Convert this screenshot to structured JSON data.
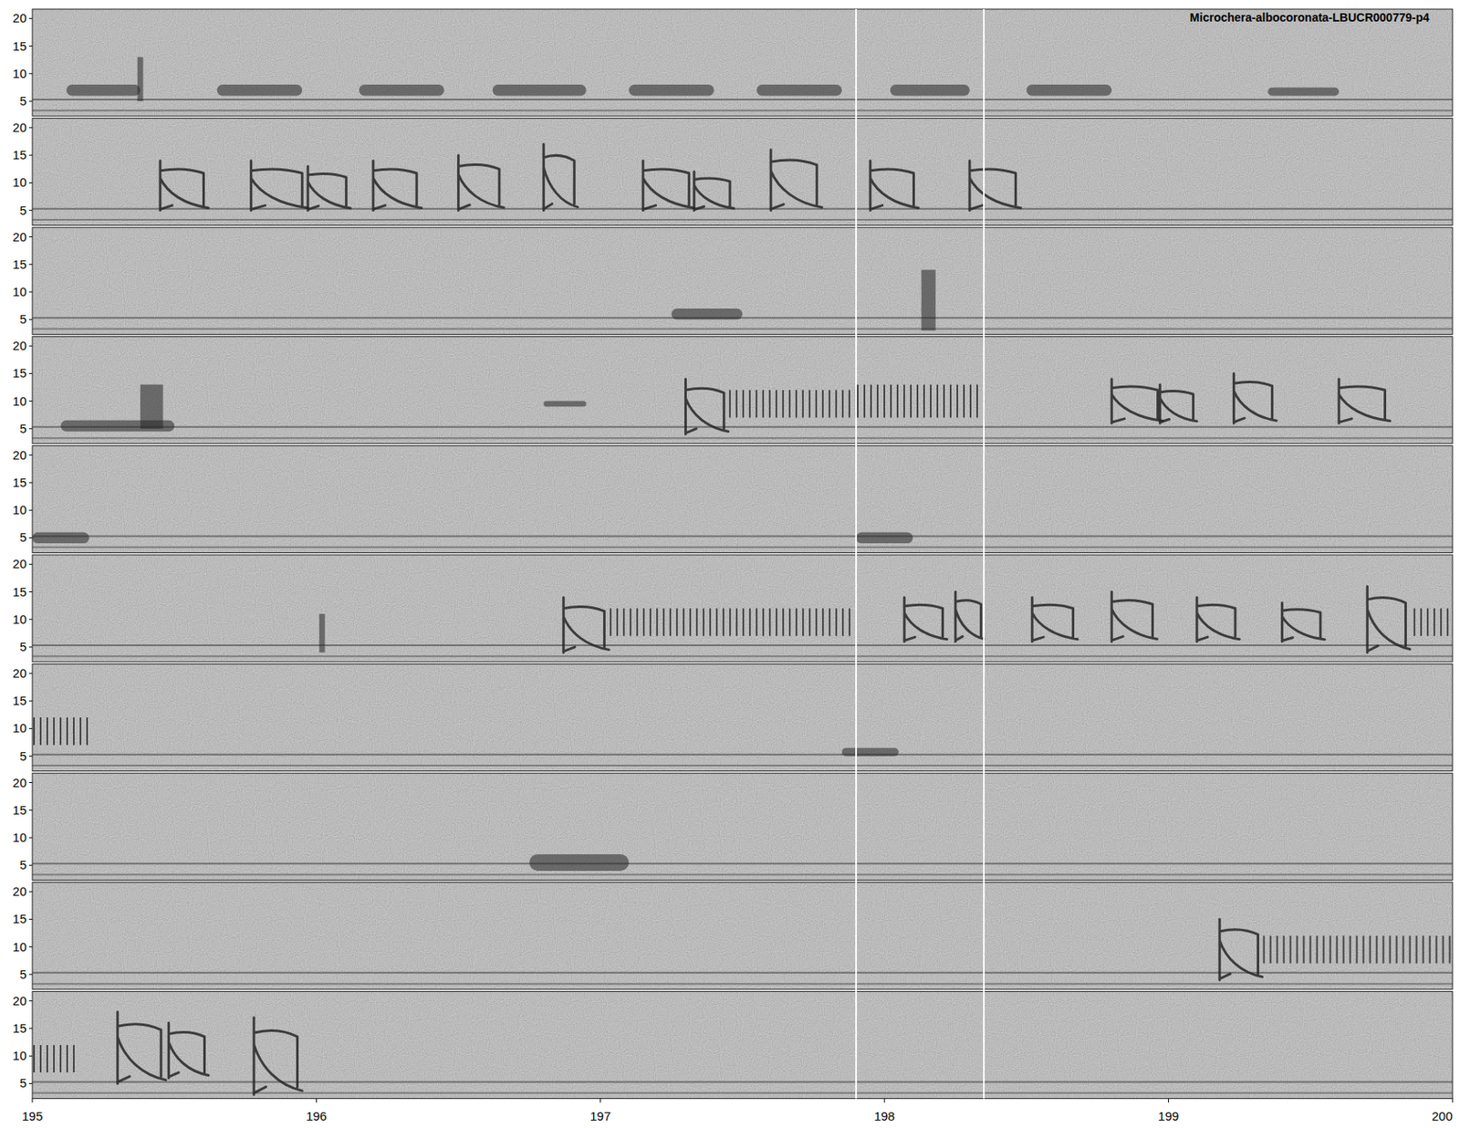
{
  "chart_data": {
    "type": "spectrogram",
    "title": "Microchera-albocoronata-LBUCR000779-p4",
    "xlim": [
      195,
      200
    ],
    "xticks": [
      195,
      196,
      197,
      198,
      199,
      200
    ],
    "ylim": [
      2.3,
      21.7
    ],
    "yticks": [
      5,
      10,
      15,
      20
    ],
    "markers": [
      197.9,
      198.35
    ],
    "panels": [
      {
        "events": [
          {
            "type": "band",
            "start": 195.12,
            "end": 195.38,
            "low": 6,
            "high": 8
          },
          {
            "type": "click",
            "start": 195.37,
            "end": 195.39,
            "low": 5,
            "high": 13
          },
          {
            "type": "band",
            "start": 195.65,
            "end": 195.95,
            "low": 6,
            "high": 8
          },
          {
            "type": "band",
            "start": 196.15,
            "end": 196.45,
            "low": 6,
            "high": 8
          },
          {
            "type": "band",
            "start": 196.62,
            "end": 196.95,
            "low": 6,
            "high": 8
          },
          {
            "type": "band",
            "start": 197.1,
            "end": 197.4,
            "low": 6,
            "high": 8
          },
          {
            "type": "band",
            "start": 197.55,
            "end": 197.85,
            "low": 6,
            "high": 8
          },
          {
            "type": "band",
            "start": 198.02,
            "end": 198.3,
            "low": 6,
            "high": 8
          },
          {
            "type": "band",
            "start": 198.5,
            "end": 198.8,
            "low": 6,
            "high": 8
          },
          {
            "type": "band",
            "start": 199.35,
            "end": 199.6,
            "low": 6,
            "high": 7.5
          }
        ]
      },
      {
        "events": [
          {
            "type": "sweep",
            "start": 195.45,
            "end": 195.62,
            "low": 5,
            "high": 14
          },
          {
            "type": "sweep",
            "start": 195.77,
            "end": 195.97,
            "low": 5,
            "high": 14
          },
          {
            "type": "sweep",
            "start": 195.97,
            "end": 196.12,
            "low": 5,
            "high": 13
          },
          {
            "type": "sweep",
            "start": 196.2,
            "end": 196.37,
            "low": 5,
            "high": 14
          },
          {
            "type": "sweep",
            "start": 196.5,
            "end": 196.66,
            "low": 5,
            "high": 15
          },
          {
            "type": "sweep",
            "start": 196.8,
            "end": 196.92,
            "low": 5,
            "high": 17
          },
          {
            "type": "sweep",
            "start": 197.15,
            "end": 197.33,
            "low": 5,
            "high": 14
          },
          {
            "type": "sweep",
            "start": 197.33,
            "end": 197.47,
            "low": 5,
            "high": 12
          },
          {
            "type": "sweep",
            "start": 197.6,
            "end": 197.78,
            "low": 5,
            "high": 16
          },
          {
            "type": "sweep",
            "start": 197.95,
            "end": 198.12,
            "low": 5,
            "high": 14
          },
          {
            "type": "sweep",
            "start": 198.3,
            "end": 198.48,
            "low": 5,
            "high": 14
          }
        ]
      },
      {
        "events": [
          {
            "type": "band",
            "start": 197.25,
            "end": 197.5,
            "low": 5,
            "high": 7
          },
          {
            "type": "click",
            "start": 198.13,
            "end": 198.18,
            "low": 3,
            "high": 14
          }
        ]
      },
      {
        "events": [
          {
            "type": "band",
            "start": 195.1,
            "end": 195.5,
            "low": 4.5,
            "high": 6.5
          },
          {
            "type": "click",
            "start": 195.38,
            "end": 195.46,
            "low": 5,
            "high": 13
          },
          {
            "type": "band",
            "start": 196.8,
            "end": 196.95,
            "low": 9,
            "high": 10
          },
          {
            "type": "sweep",
            "start": 197.3,
            "end": 197.45,
            "low": 4,
            "high": 14
          },
          {
            "type": "buzz",
            "start": 197.45,
            "end": 197.9,
            "low": 7,
            "high": 12
          },
          {
            "type": "buzz",
            "start": 197.9,
            "end": 198.35,
            "low": 7,
            "high": 13
          },
          {
            "type": "sweep",
            "start": 198.8,
            "end": 198.98,
            "low": 6,
            "high": 14
          },
          {
            "type": "sweep",
            "start": 198.97,
            "end": 199.1,
            "low": 6,
            "high": 13
          },
          {
            "type": "sweep",
            "start": 199.23,
            "end": 199.38,
            "low": 6,
            "high": 15
          },
          {
            "type": "sweep",
            "start": 199.6,
            "end": 199.78,
            "low": 6,
            "high": 14
          }
        ]
      },
      {
        "events": [
          {
            "type": "band",
            "start": 195.0,
            "end": 195.2,
            "low": 4,
            "high": 6
          },
          {
            "type": "band",
            "start": 197.9,
            "end": 198.1,
            "low": 4,
            "high": 6
          }
        ]
      },
      {
        "events": [
          {
            "type": "click",
            "start": 196.01,
            "end": 196.03,
            "low": 4,
            "high": 11
          },
          {
            "type": "sweep",
            "start": 196.87,
            "end": 197.03,
            "low": 4,
            "high": 14
          },
          {
            "type": "buzz",
            "start": 197.03,
            "end": 197.9,
            "low": 7,
            "high": 12
          },
          {
            "type": "sweep",
            "start": 198.07,
            "end": 198.22,
            "low": 6,
            "high": 14
          },
          {
            "type": "sweep",
            "start": 198.25,
            "end": 198.35,
            "low": 6,
            "high": 15
          },
          {
            "type": "sweep",
            "start": 198.52,
            "end": 198.68,
            "low": 6,
            "high": 14
          },
          {
            "type": "sweep",
            "start": 198.8,
            "end": 198.96,
            "low": 6,
            "high": 15
          },
          {
            "type": "sweep",
            "start": 199.1,
            "end": 199.25,
            "low": 6,
            "high": 14
          },
          {
            "type": "sweep",
            "start": 199.4,
            "end": 199.55,
            "low": 6,
            "high": 13
          },
          {
            "type": "sweep",
            "start": 199.7,
            "end": 199.85,
            "low": 4,
            "high": 16
          },
          {
            "type": "buzz",
            "start": 199.86,
            "end": 200,
            "low": 7,
            "high": 12
          }
        ]
      },
      {
        "events": [
          {
            "type": "buzz",
            "start": 195.0,
            "end": 195.2,
            "low": 7,
            "high": 12
          },
          {
            "type": "band",
            "start": 197.85,
            "end": 198.05,
            "low": 5,
            "high": 6.5
          }
        ]
      },
      {
        "events": [
          {
            "type": "band",
            "start": 196.75,
            "end": 197.1,
            "low": 4,
            "high": 7
          }
        ]
      },
      {
        "events": [
          {
            "type": "sweep",
            "start": 199.18,
            "end": 199.33,
            "low": 4,
            "high": 15
          },
          {
            "type": "buzz",
            "start": 199.33,
            "end": 200,
            "low": 7,
            "high": 12
          }
        ]
      },
      {
        "events": [
          {
            "type": "buzz",
            "start": 195.0,
            "end": 195.15,
            "low": 7,
            "high": 12
          },
          {
            "type": "sweep",
            "start": 195.3,
            "end": 195.47,
            "low": 5,
            "high": 18
          },
          {
            "type": "sweep",
            "start": 195.48,
            "end": 195.62,
            "low": 6,
            "high": 16
          },
          {
            "type": "sweep",
            "start": 195.78,
            "end": 195.95,
            "low": 3,
            "high": 17
          }
        ]
      }
    ]
  }
}
